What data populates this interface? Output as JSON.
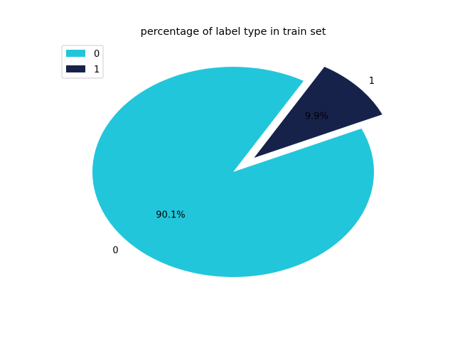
{
  "chart_data": {
    "type": "pie",
    "title": "percentage of label type in train set",
    "slices": [
      {
        "label": "0",
        "value": 90.1,
        "pct_label": "90.1%",
        "color": "#22c6db",
        "explode": 0
      },
      {
        "label": "1",
        "value": 9.9,
        "pct_label": "9.9%",
        "color": "#17224b",
        "explode": 0.2
      }
    ],
    "start_angle_deg": 60,
    "legend": {
      "position": "top-left",
      "entries": [
        "0",
        "1"
      ]
    }
  }
}
